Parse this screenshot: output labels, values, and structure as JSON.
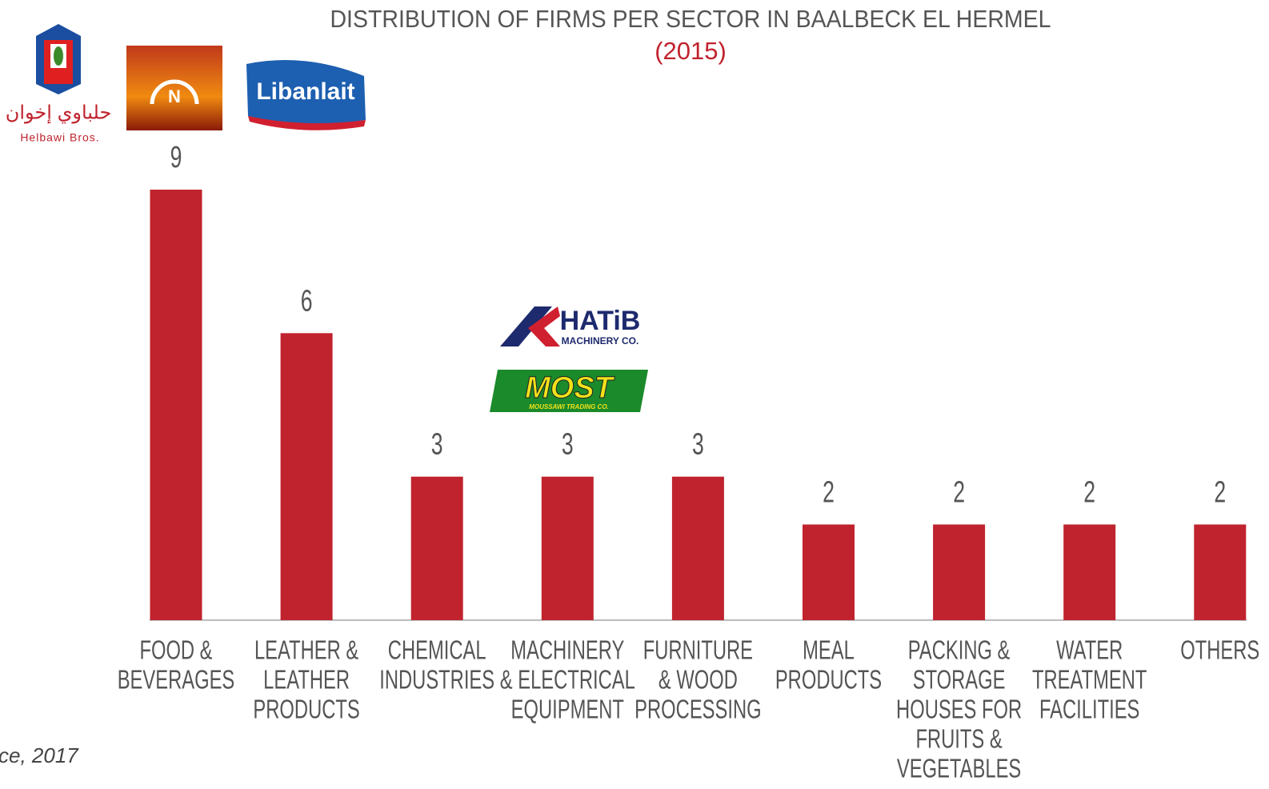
{
  "chart_data": {
    "type": "bar",
    "title": "DISTRIBUTION OF FIRMS PER SECTOR IN BAALBECK EL HERMEL",
    "subtitle": "(2015)",
    "categories": [
      [
        "FOOD &",
        "BEVERAGES"
      ],
      [
        "LEATHER &",
        "LEATHER",
        "PRODUCTS"
      ],
      [
        "CHEMICAL",
        "INDUSTRIES"
      ],
      [
        "MACHINERY",
        "& ELECTRICAL",
        "EQUIPMENT"
      ],
      [
        "FURNITURE",
        "& WOOD",
        "PROCESSING"
      ],
      [
        "MEAL",
        "PRODUCTS"
      ],
      [
        "PACKING &",
        "STORAGE",
        "HOUSES FOR",
        "FRUITS &",
        "VEGETABLES"
      ],
      [
        "WATER",
        "TREATMENT",
        "FACILITIES"
      ],
      [
        "OTHERS"
      ]
    ],
    "values": [
      9,
      6,
      3,
      3,
      3,
      2,
      2,
      2,
      2
    ],
    "color": "#c0232d",
    "ylim": [
      0,
      9
    ],
    "source": "ce, 2017"
  },
  "logos": {
    "helbawi": "Helbawi Bros.",
    "helbawi_arabic": "حلباوي إخوان",
    "nour": "N",
    "libanlait": "Libanlait",
    "khatib": "HATiB",
    "khatib_sub": "MACHINERY CO.",
    "most": "MOST",
    "most_sub": "MOUSSAWI TRADING CO."
  }
}
